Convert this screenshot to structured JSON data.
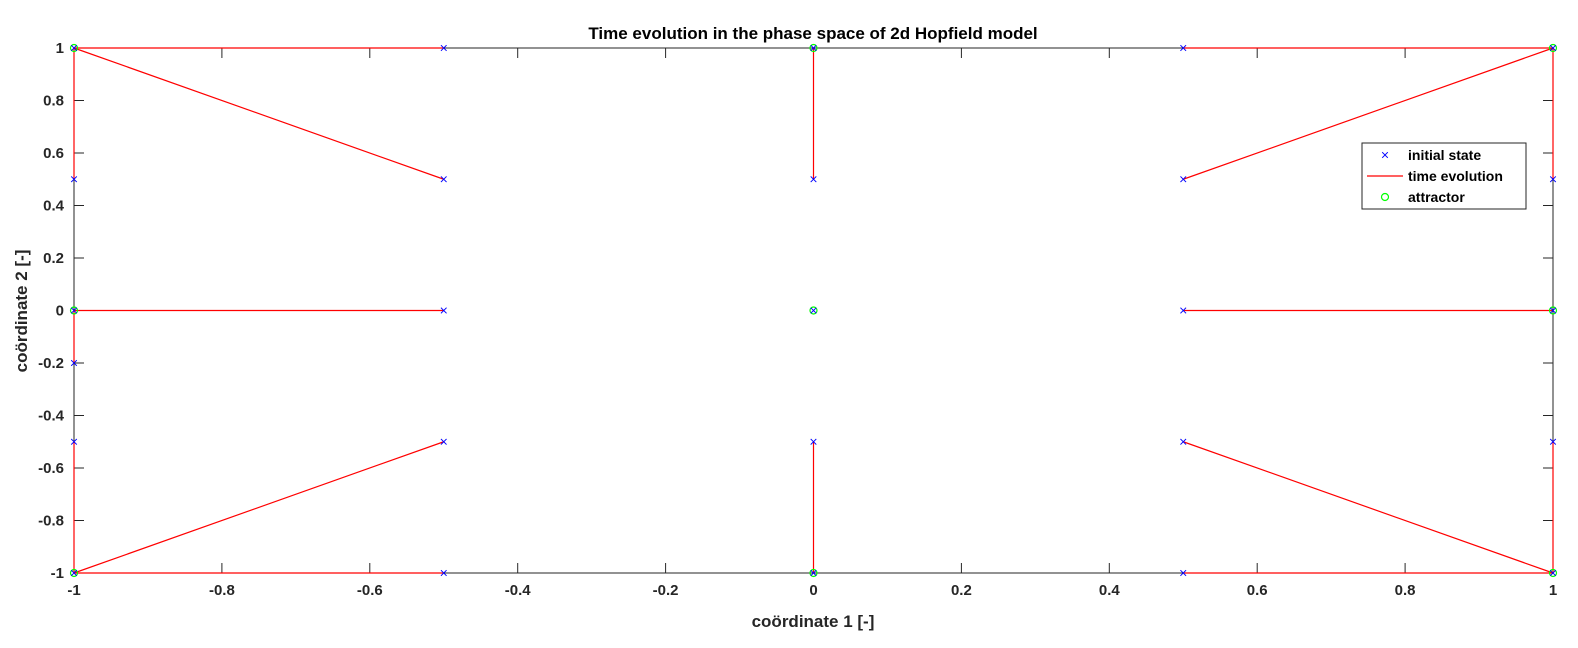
{
  "chart_data": {
    "type": "line",
    "title": "Time evolution in the phase space of 2d Hopfield model",
    "xlabel": "coördinate 1 [-]",
    "ylabel": "coördinate 2 [-]",
    "xlim": [
      -1,
      1
    ],
    "ylim": [
      -1,
      1
    ],
    "grid": false,
    "legend_placement": "right",
    "xticks": [
      "-1",
      "-0.8",
      "-0.6",
      "-0.4",
      "-0.2",
      "0",
      "0.2",
      "0.4",
      "0.6",
      "0.8",
      "1"
    ],
    "yticks": [
      "-1",
      "-0.8",
      "-0.6",
      "-0.4",
      "-0.2",
      "0",
      "0.2",
      "0.4",
      "0.6",
      "0.8",
      "1"
    ],
    "series": [
      {
        "name": "initial state",
        "color": "#0000ff",
        "marker": "x",
        "points": [
          [
            -1,
            1
          ],
          [
            -0.5,
            1
          ],
          [
            0,
            1
          ],
          [
            0.5,
            1
          ],
          [
            1,
            1
          ],
          [
            -1,
            0.5
          ],
          [
            -0.5,
            0.5
          ],
          [
            0,
            0.5
          ],
          [
            0.5,
            0.5
          ],
          [
            1,
            0.5
          ],
          [
            -1,
            0
          ],
          [
            -0.5,
            0
          ],
          [
            0,
            0
          ],
          [
            0.5,
            0
          ],
          [
            1,
            0
          ],
          [
            -1,
            -0.2
          ],
          [
            -1,
            -0.5
          ],
          [
            -0.5,
            -0.5
          ],
          [
            0,
            -0.5
          ],
          [
            0.5,
            -0.5
          ],
          [
            1,
            -0.5
          ],
          [
            -1,
            -1
          ],
          [
            -0.5,
            -1
          ],
          [
            0,
            -1
          ],
          [
            0.5,
            -1
          ],
          [
            1,
            -1
          ]
        ]
      },
      {
        "name": "time evolution",
        "color": "#ff0000",
        "marker": "line",
        "segments": [
          [
            [
              -0.5,
              1
            ],
            [
              -1,
              1
            ]
          ],
          [
            [
              0.5,
              1
            ],
            [
              1,
              1
            ]
          ],
          [
            [
              -1,
              0.5
            ],
            [
              -1,
              1
            ]
          ],
          [
            [
              -0.5,
              0.5
            ],
            [
              -1,
              1
            ]
          ],
          [
            [
              0,
              0.5
            ],
            [
              0,
              1
            ]
          ],
          [
            [
              0.5,
              0.5
            ],
            [
              1,
              1
            ]
          ],
          [
            [
              1,
              0.5
            ],
            [
              1,
              1
            ]
          ],
          [
            [
              -0.5,
              0
            ],
            [
              -1,
              0
            ]
          ],
          [
            [
              0.5,
              0
            ],
            [
              1,
              0
            ]
          ],
          [
            [
              -1,
              -0.2
            ],
            [
              -1,
              0
            ]
          ],
          [
            [
              -1,
              -0.5
            ],
            [
              -1,
              -1
            ]
          ],
          [
            [
              -0.5,
              -0.5
            ],
            [
              -1,
              -1
            ]
          ],
          [
            [
              0,
              -0.5
            ],
            [
              0,
              -1
            ]
          ],
          [
            [
              0.5,
              -0.5
            ],
            [
              1,
              -1
            ]
          ],
          [
            [
              1,
              -0.5
            ],
            [
              1,
              -1
            ]
          ],
          [
            [
              -0.5,
              -1
            ],
            [
              -1,
              -1
            ]
          ],
          [
            [
              0.5,
              -1
            ],
            [
              1,
              -1
            ]
          ]
        ]
      },
      {
        "name": "attractor",
        "color": "#00ff00",
        "marker": "o",
        "points": [
          [
            -1,
            1
          ],
          [
            0,
            1
          ],
          [
            1,
            1
          ],
          [
            -1,
            0
          ],
          [
            0,
            0
          ],
          [
            1,
            0
          ],
          [
            -1,
            -1
          ],
          [
            0,
            -1
          ],
          [
            1,
            -1
          ]
        ]
      }
    ]
  }
}
